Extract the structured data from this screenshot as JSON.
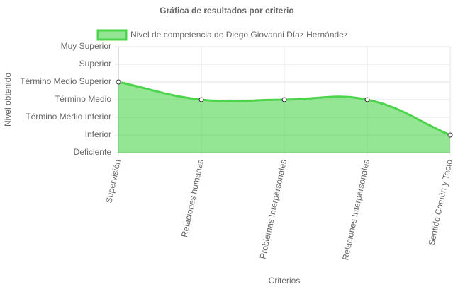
{
  "chart_data": {
    "type": "line",
    "title": "Gráfica de resultados por criterio",
    "x_label": "Criterios",
    "y_label": "Nivel obtenido",
    "categories": [
      "Supervisión",
      "Relaciones humanas",
      "Problemas Interpersonales",
      "Relaciones Interpersonales",
      "Sentido Común y Tacto"
    ],
    "series": [
      {
        "name": "Nivel de competencia de Diego Giovanni Díaz Hernández",
        "color": "#4dd44d",
        "fill": "rgba(60,210,60,0.55)",
        "values": [
          4,
          3,
          3,
          3,
          1
        ]
      }
    ],
    "ylim": [
      0,
      6
    ],
    "yticks": [
      {
        "value": 0,
        "label": "Deficiente"
      },
      {
        "value": 1,
        "label": "Inferior"
      },
      {
        "value": 2,
        "label": "Término Medio Inferior"
      },
      {
        "value": 3,
        "label": "Término Medio"
      },
      {
        "value": 4,
        "label": "Término Medio Superior"
      },
      {
        "value": 5,
        "label": "Superior"
      },
      {
        "value": 6,
        "label": "Muy Superior"
      }
    ],
    "grid": true
  }
}
